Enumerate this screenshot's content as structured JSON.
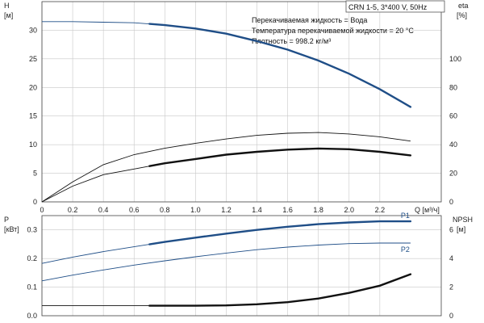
{
  "chart_data": [
    {
      "type": "line",
      "panel": "top",
      "title_box": "CRN 1-5, 3*400 V, 50Hz",
      "info_lines": [
        "Перекачиваемая жидкость = Вода",
        "Температура перекачиваемой жидкости = 20 °C",
        "Плотность = 998.2 кг/м³"
      ],
      "xlabel": "Q [м³/ч]",
      "xlim": [
        0,
        2.6
      ],
      "x_ticks": [
        "0",
        "0.2",
        "0.4",
        "0.6",
        "0.8",
        "1.0",
        "1.2",
        "1.4",
        "1.6",
        "1.8",
        "2.0",
        "2.2"
      ],
      "ylabel_left": [
        "H",
        "[м]"
      ],
      "ylim_left": [
        0,
        35
      ],
      "y_ticks_left": [
        "0",
        "5",
        "10",
        "15",
        "20",
        "25",
        "30"
      ],
      "ylabel_right": [
        "eta",
        "[%]"
      ],
      "ylim_right": [
        0,
        140
      ],
      "y_ticks_right": [
        "0",
        "20",
        "40",
        "60",
        "80",
        "100"
      ],
      "grid": true,
      "series": [
        {
          "axis": "left",
          "color": "#1f4e87",
          "x": [
            0,
            0.2,
            0.4,
            0.6,
            0.8,
            1.0,
            1.2,
            1.4,
            1.6,
            1.8,
            2.0,
            2.2,
            2.4
          ],
          "y": [
            31.5,
            31.5,
            31.4,
            31.3,
            30.9,
            30.3,
            29.4,
            28.1,
            26.6,
            24.7,
            22.4,
            19.7,
            16.6
          ],
          "bold_from": 0.7
        },
        {
          "axis": "right",
          "color": "#111111",
          "x": [
            0,
            0.2,
            0.4,
            0.6,
            0.8,
            1.0,
            1.2,
            1.4,
            1.6,
            1.8,
            2.0,
            2.2,
            2.4
          ],
          "y": [
            0,
            14,
            26,
            33,
            37.5,
            41,
            44,
            46.5,
            48,
            48.5,
            47.5,
            45.5,
            42.5
          ]
        },
        {
          "axis": "right",
          "color": "#111111",
          "x": [
            0,
            0.2,
            0.4,
            0.6,
            0.8,
            1.0,
            1.2,
            1.4,
            1.6,
            1.8,
            2.0,
            2.2,
            2.4
          ],
          "y": [
            0,
            11,
            19,
            23,
            27,
            30,
            33,
            35,
            36.5,
            37.3,
            36.8,
            35,
            32.5
          ],
          "bold_from": 0.7
        }
      ]
    },
    {
      "type": "line",
      "panel": "bottom",
      "xlim": [
        0,
        2.6
      ],
      "ylabel_left": [
        "P",
        "[кВт]"
      ],
      "ylim_left": [
        0,
        0.35
      ],
      "y_ticks_left": [
        "0.0",
        "0.1",
        "0.2",
        "0.3"
      ],
      "ylabel_right": [
        "NPSH",
        "[м]"
      ],
      "ylim_right": [
        0,
        7
      ],
      "y_ticks_right": [
        "0",
        "2",
        "4",
        "6"
      ],
      "grid": true,
      "series": [
        {
          "name": "P1",
          "axis": "left",
          "color": "#1f4e87",
          "x": [
            0,
            0.2,
            0.4,
            0.6,
            0.8,
            1.0,
            1.2,
            1.4,
            1.6,
            1.8,
            2.0,
            2.2,
            2.4
          ],
          "y": [
            0.183,
            0.205,
            0.224,
            0.241,
            0.258,
            0.273,
            0.287,
            0.3,
            0.311,
            0.32,
            0.326,
            0.33,
            0.33
          ],
          "bold_from": 0.7
        },
        {
          "name": "P2",
          "axis": "left",
          "color": "#1f4e87",
          "x": [
            0,
            0.2,
            0.4,
            0.6,
            0.8,
            1.0,
            1.2,
            1.4,
            1.6,
            1.8,
            2.0,
            2.2,
            2.4
          ],
          "y": [
            0.122,
            0.142,
            0.16,
            0.177,
            0.192,
            0.206,
            0.219,
            0.231,
            0.24,
            0.247,
            0.252,
            0.254,
            0.254
          ]
        },
        {
          "axis": "right",
          "color": "#111111",
          "x": [
            0,
            0.2,
            0.4,
            0.6,
            0.8,
            1.0,
            1.2,
            1.4,
            1.6,
            1.8,
            2.0,
            2.2,
            2.4
          ],
          "y": [
            0.7,
            0.7,
            0.7,
            0.7,
            0.7,
            0.7,
            0.72,
            0.8,
            0.95,
            1.2,
            1.6,
            2.1,
            2.9
          ],
          "bold_from": 0.7
        }
      ]
    }
  ]
}
